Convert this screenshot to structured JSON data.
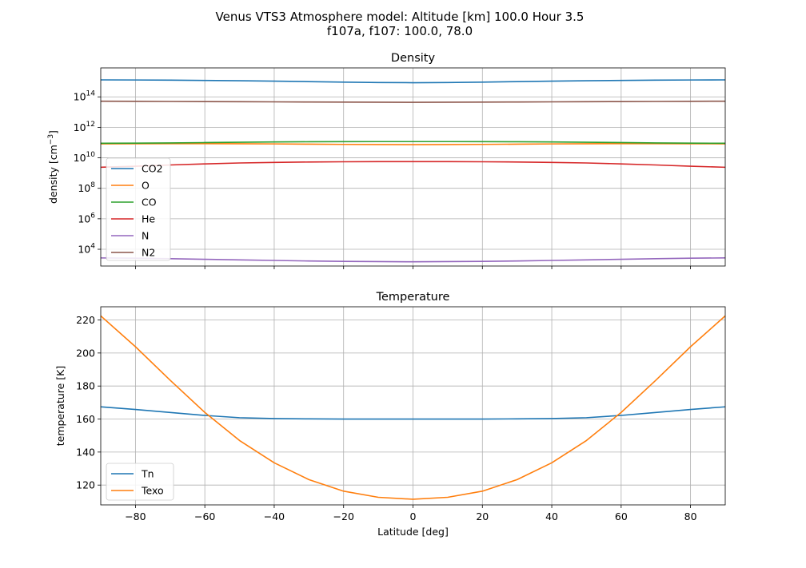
{
  "figure": {
    "title_line1": "Venus VTS3 Atmosphere model: Altitude [km] 100.0 Hour 3.5",
    "title_line2": "f107a, f107: 100.0, 78.0"
  },
  "chart_data": [
    {
      "type": "line",
      "title": "Density",
      "xlabel": "",
      "ylabel": "density [cm^-3]",
      "yscale": "log",
      "xlim": [
        -90,
        90
      ],
      "ylim_log10": [
        2.9,
        15.9
      ],
      "xticks": [
        -80,
        -60,
        -40,
        -20,
        0,
        20,
        40,
        60,
        80
      ],
      "yticks": [
        {
          "base": "10",
          "exp": "4",
          "log": 4
        },
        {
          "base": "10",
          "exp": "6",
          "log": 6
        },
        {
          "base": "10",
          "exp": "8",
          "log": 8
        },
        {
          "base": "10",
          "exp": "10",
          "log": 10
        },
        {
          "base": "10",
          "exp": "12",
          "log": 12
        },
        {
          "base": "10",
          "exp": "14",
          "log": 14
        }
      ],
      "grid": true,
      "legend_position": "lower-left",
      "x": [
        -90,
        -80,
        -70,
        -60,
        -50,
        -40,
        -30,
        -20,
        -10,
        0,
        10,
        20,
        30,
        40,
        50,
        60,
        70,
        80,
        90
      ],
      "series": [
        {
          "name": "CO2",
          "color": "#1f77b4",
          "values": [
            1300000000000000.0,
            1280000000000000.0,
            1250000000000000.0,
            1200000000000000.0,
            1140000000000000.0,
            1080000000000000.0,
            1000000000000000.0,
            920000000000000.0,
            870000000000000.0,
            850000000000000.0,
            870000000000000.0,
            920000000000000.0,
            1000000000000000.0,
            1080000000000000.0,
            1140000000000000.0,
            1200000000000000.0,
            1250000000000000.0,
            1280000000000000.0,
            1300000000000000.0
          ]
        },
        {
          "name": "O",
          "color": "#ff7f0e",
          "values": [
            83000000000.0,
            84000000000.0,
            85000000000.0,
            85000000000.0,
            84000000000.0,
            82000000000.0,
            79000000000.0,
            76000000000.0,
            74000000000.0,
            73000000000.0,
            74000000000.0,
            76000000000.0,
            79000000000.0,
            82000000000.0,
            84000000000.0,
            85000000000.0,
            85000000000.0,
            84000000000.0,
            83000000000.0
          ]
        },
        {
          "name": "CO",
          "color": "#2ca02c",
          "values": [
            90000000000.0,
            92000000000.0,
            95000000000.0,
            100000000000.0,
            105000000000.0,
            110000000000.0,
            113000000000.0,
            115000000000.0,
            116000000000.0,
            116000000000.0,
            116000000000.0,
            115000000000.0,
            113000000000.0,
            110000000000.0,
            105000000000.0,
            100000000000.0,
            95000000000.0,
            92000000000.0,
            90000000000.0
          ]
        },
        {
          "name": "He",
          "color": "#d62728",
          "values": [
            2400000000.0,
            2800000000.0,
            3400000000.0,
            4000000000.0,
            4600000000.0,
            5000000000.0,
            5300000000.0,
            5500000000.0,
            5600000000.0,
            5600000000.0,
            5600000000.0,
            5500000000.0,
            5300000000.0,
            5000000000.0,
            4600000000.0,
            4000000000.0,
            3400000000.0,
            2800000000.0,
            2400000000.0
          ]
        },
        {
          "name": "N",
          "color": "#9467bd",
          "values": [
            2700.0,
            2600.0,
            2400.0,
            2200.0,
            2000.0,
            1850.0,
            1700.0,
            1600.0,
            1550.0,
            1500.0,
            1550.0,
            1600.0,
            1700.0,
            1850.0,
            2000.0,
            2200.0,
            2400.0,
            2600.0,
            2700.0
          ]
        },
        {
          "name": "N2",
          "color": "#8c564b",
          "values": [
            52000000000000.0,
            51000000000000.0,
            50000000000000.0,
            49000000000000.0,
            48000000000000.0,
            47000000000000.0,
            46000000000000.0,
            45000000000000.0,
            44500000000000.0,
            44000000000000.0,
            44500000000000.0,
            45000000000000.0,
            46000000000000.0,
            47000000000000.0,
            48000000000000.0,
            49000000000000.0,
            50000000000000.0,
            51000000000000.0,
            52000000000000.0
          ]
        }
      ]
    },
    {
      "type": "line",
      "title": "Temperature",
      "xlabel": "Latitude [deg]",
      "ylabel": "temperature [K]",
      "xlim": [
        -90,
        90
      ],
      "ylim": [
        108,
        228
      ],
      "xticks": [
        -80,
        -60,
        -40,
        -20,
        0,
        20,
        40,
        60,
        80
      ],
      "yticks": [
        120,
        140,
        160,
        180,
        200,
        220
      ],
      "grid": true,
      "legend_position": "lower-left",
      "x": [
        -90,
        -80,
        -70,
        -60,
        -50,
        -40,
        -30,
        -20,
        -10,
        0,
        10,
        20,
        30,
        40,
        50,
        60,
        70,
        80,
        90
      ],
      "series": [
        {
          "name": "Tn",
          "color": "#1f77b4",
          "values": [
            167.4,
            165.8,
            164.0,
            162.2,
            160.8,
            160.3,
            160.1,
            160.0,
            160.0,
            160.0,
            160.0,
            160.0,
            160.1,
            160.3,
            160.8,
            162.2,
            164.0,
            165.8,
            167.4
          ]
        },
        {
          "name": "Texo",
          "color": "#ff7f0e",
          "values": [
            222.5,
            203.8,
            183.5,
            164.0,
            147.0,
            133.5,
            123.3,
            116.3,
            112.6,
            111.4,
            112.6,
            116.3,
            123.3,
            133.5,
            147.0,
            164.0,
            183.5,
            203.8,
            222.5
          ]
        }
      ]
    }
  ]
}
